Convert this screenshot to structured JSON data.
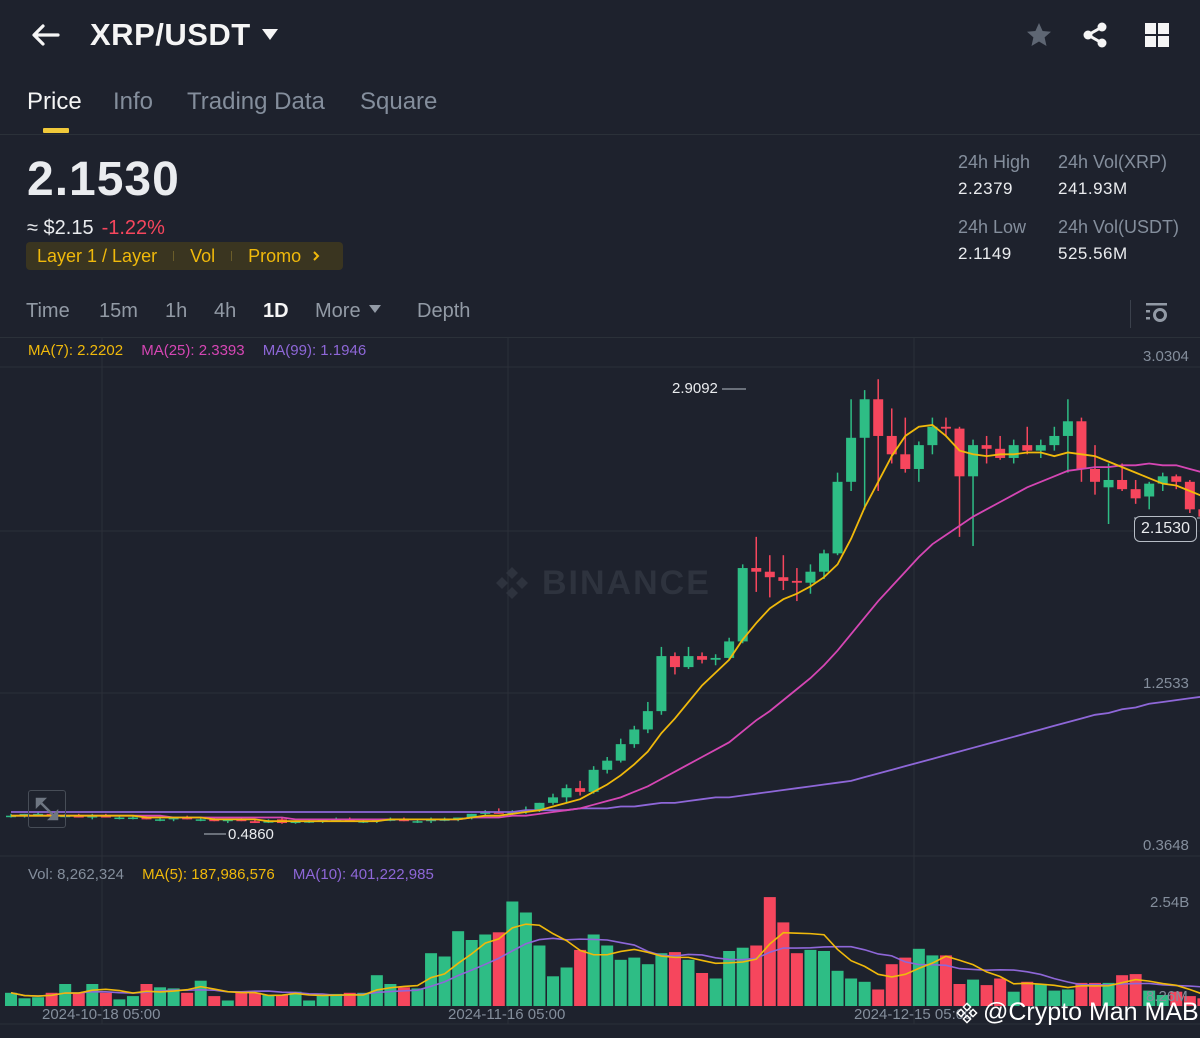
{
  "header": {
    "pair": "XRP/USDT",
    "icons": [
      "back-arrow-icon",
      "star-icon",
      "share-icon",
      "grid-icon"
    ]
  },
  "tabs": [
    {
      "label": "Price",
      "active": true
    },
    {
      "label": "Info",
      "active": false
    },
    {
      "label": "Trading Data",
      "active": false
    },
    {
      "label": "Square",
      "active": false
    }
  ],
  "ticker": {
    "last_price": "2.1530",
    "fiat_price": "≈ $2.15",
    "change_pct": "-1.22%",
    "tags": [
      "Layer 1 / Layer",
      "Vol",
      "Promo"
    ],
    "high_label": "24h High",
    "high_value": "2.2379",
    "low_label": "24h Low",
    "low_value": "2.1149",
    "vol_base_label": "24h Vol(XRP)",
    "vol_base_value": "241.93M",
    "vol_quote_label": "24h Vol(USDT)",
    "vol_quote_value": "525.56M"
  },
  "intervals": {
    "items": [
      "Time",
      "15m",
      "1h",
      "4h",
      "1D",
      "More",
      "Depth"
    ],
    "active": "1D"
  },
  "indicators": {
    "ma7": "MA(7): 2.2202",
    "ma25": "MA(25): 2.3393",
    "ma99": "MA(99): 1.1946",
    "vol": "Vol: 8,262,324",
    "vol_ma5": "MA(5): 187,986,576",
    "vol_ma10": "MA(10): 401,222,985"
  },
  "colors": {
    "up": "#2ebd85",
    "down": "#f6465d",
    "ma7": "#f0b90b",
    "ma25": "#d546b4",
    "ma99": "#8e67d8",
    "accent": "#f0c93a",
    "bg": "#1e222d"
  },
  "chart_data": {
    "type": "candlestick",
    "title": "XRP/USDT 1D",
    "price_axis": [
      "3.0304",
      "2.1530",
      "1.2533",
      "0.3648"
    ],
    "volume_axis": [
      "2.54B",
      "8.26M"
    ],
    "time_axis": [
      "2024-10-18 05:00",
      "2024-11-16 05:00",
      "2024-12-15 05:00"
    ],
    "annotations": {
      "max": "2.9092",
      "min": "0.4860",
      "last": "2.1530"
    },
    "ohlc": [
      [
        0.53,
        0.54,
        0.52,
        0.53
      ],
      [
        0.53,
        0.54,
        0.52,
        0.54
      ],
      [
        0.54,
        0.55,
        0.53,
        0.54
      ],
      [
        0.54,
        0.55,
        0.53,
        0.53
      ],
      [
        0.53,
        0.54,
        0.52,
        0.53
      ],
      [
        0.53,
        0.54,
        0.52,
        0.52
      ],
      [
        0.52,
        0.54,
        0.51,
        0.53
      ],
      [
        0.53,
        0.54,
        0.52,
        0.52
      ],
      [
        0.52,
        0.53,
        0.51,
        0.52
      ],
      [
        0.52,
        0.53,
        0.51,
        0.52
      ],
      [
        0.52,
        0.53,
        0.51,
        0.51
      ],
      [
        0.51,
        0.52,
        0.5,
        0.51
      ],
      [
        0.51,
        0.52,
        0.5,
        0.52
      ],
      [
        0.52,
        0.53,
        0.51,
        0.51
      ],
      [
        0.51,
        0.52,
        0.5,
        0.51
      ],
      [
        0.51,
        0.52,
        0.5,
        0.5
      ],
      [
        0.5,
        0.51,
        0.49,
        0.51
      ],
      [
        0.51,
        0.52,
        0.5,
        0.5
      ],
      [
        0.5,
        0.51,
        0.49,
        0.49
      ],
      [
        0.5,
        0.51,
        0.49,
        0.5
      ],
      [
        0.51,
        0.52,
        0.486,
        0.49
      ],
      [
        0.49,
        0.5,
        0.486,
        0.5
      ],
      [
        0.5,
        0.51,
        0.49,
        0.5
      ],
      [
        0.5,
        0.51,
        0.49,
        0.51
      ],
      [
        0.51,
        0.52,
        0.5,
        0.51
      ],
      [
        0.51,
        0.52,
        0.5,
        0.5
      ],
      [
        0.5,
        0.51,
        0.49,
        0.5
      ],
      [
        0.5,
        0.51,
        0.49,
        0.51
      ],
      [
        0.51,
        0.52,
        0.5,
        0.51
      ],
      [
        0.51,
        0.52,
        0.5,
        0.5
      ],
      [
        0.5,
        0.51,
        0.49,
        0.5
      ],
      [
        0.5,
        0.52,
        0.49,
        0.51
      ],
      [
        0.51,
        0.52,
        0.5,
        0.51
      ],
      [
        0.51,
        0.52,
        0.5,
        0.52
      ],
      [
        0.52,
        0.54,
        0.51,
        0.54
      ],
      [
        0.54,
        0.56,
        0.53,
        0.55
      ],
      [
        0.55,
        0.57,
        0.54,
        0.54
      ],
      [
        0.54,
        0.56,
        0.53,
        0.55
      ],
      [
        0.55,
        0.58,
        0.54,
        0.56
      ],
      [
        0.56,
        0.6,
        0.55,
        0.6
      ],
      [
        0.6,
        0.65,
        0.59,
        0.63
      ],
      [
        0.63,
        0.7,
        0.6,
        0.68
      ],
      [
        0.68,
        0.72,
        0.64,
        0.66
      ],
      [
        0.66,
        0.8,
        0.65,
        0.78
      ],
      [
        0.78,
        0.85,
        0.76,
        0.83
      ],
      [
        0.83,
        0.95,
        0.82,
        0.92
      ],
      [
        0.92,
        1.02,
        0.9,
        1.0
      ],
      [
        1.0,
        1.15,
        0.98,
        1.1
      ],
      [
        1.1,
        1.45,
        1.08,
        1.4
      ],
      [
        1.4,
        1.42,
        1.3,
        1.34
      ],
      [
        1.34,
        1.45,
        1.33,
        1.4
      ],
      [
        1.4,
        1.42,
        1.36,
        1.38
      ],
      [
        1.38,
        1.41,
        1.35,
        1.39
      ],
      [
        1.39,
        1.5,
        1.38,
        1.48
      ],
      [
        1.48,
        1.9,
        1.47,
        1.88
      ],
      [
        1.88,
        2.05,
        1.75,
        1.86
      ],
      [
        1.86,
        1.95,
        1.72,
        1.83
      ],
      [
        1.83,
        1.95,
        1.76,
        1.81
      ],
      [
        1.81,
        1.88,
        1.7,
        1.8
      ],
      [
        1.8,
        1.9,
        1.74,
        1.86
      ],
      [
        1.86,
        1.98,
        1.82,
        1.96
      ],
      [
        1.96,
        2.4,
        1.95,
        2.35
      ],
      [
        2.35,
        2.8,
        2.3,
        2.59
      ],
      [
        2.59,
        2.85,
        2.2,
        2.8
      ],
      [
        2.8,
        2.9092,
        2.3,
        2.6
      ],
      [
        2.6,
        2.75,
        2.45,
        2.5
      ],
      [
        2.5,
        2.7,
        2.4,
        2.42
      ],
      [
        2.42,
        2.57,
        2.35,
        2.55
      ],
      [
        2.55,
        2.7,
        2.5,
        2.65
      ],
      [
        2.65,
        2.7,
        2.6,
        2.64
      ],
      [
        2.64,
        2.65,
        2.05,
        2.38
      ],
      [
        2.38,
        2.58,
        2.0,
        2.55
      ],
      [
        2.55,
        2.6,
        2.45,
        2.53
      ],
      [
        2.53,
        2.6,
        2.47,
        2.48
      ],
      [
        2.48,
        2.58,
        2.45,
        2.55
      ],
      [
        2.55,
        2.65,
        2.5,
        2.52
      ],
      [
        2.52,
        2.58,
        2.48,
        2.55
      ],
      [
        2.55,
        2.65,
        2.52,
        2.6
      ],
      [
        2.6,
        2.8,
        2.4,
        2.68
      ],
      [
        2.68,
        2.7,
        2.35,
        2.42
      ],
      [
        2.42,
        2.55,
        2.28,
        2.35
      ],
      [
        2.32,
        2.45,
        2.12,
        2.36
      ],
      [
        2.36,
        2.45,
        2.3,
        2.31
      ],
      [
        2.31,
        2.36,
        2.23,
        2.26
      ],
      [
        2.27,
        2.35,
        2.2,
        2.34
      ],
      [
        2.34,
        2.4,
        2.3,
        2.38
      ],
      [
        2.38,
        2.39,
        2.31,
        2.35
      ],
      [
        2.35,
        2.36,
        2.18,
        2.2
      ],
      [
        2.2,
        2.24,
        2.16,
        2.16
      ],
      [
        2.15,
        2.16,
        2.14,
        2.153
      ]
    ],
    "ma7": [
      0.53,
      0.53,
      0.53,
      0.53,
      0.53,
      0.53,
      0.53,
      0.53,
      0.53,
      0.53,
      0.52,
      0.52,
      0.52,
      0.52,
      0.52,
      0.51,
      0.51,
      0.51,
      0.51,
      0.5,
      0.5,
      0.5,
      0.5,
      0.5,
      0.5,
      0.5,
      0.5,
      0.5,
      0.51,
      0.51,
      0.51,
      0.51,
      0.51,
      0.51,
      0.52,
      0.53,
      0.53,
      0.54,
      0.55,
      0.56,
      0.58,
      0.6,
      0.62,
      0.66,
      0.7,
      0.75,
      0.81,
      0.88,
      0.98,
      1.06,
      1.15,
      1.24,
      1.31,
      1.38,
      1.49,
      1.58,
      1.66,
      1.71,
      1.74,
      1.78,
      1.83,
      1.9,
      2.04,
      2.21,
      2.35,
      2.49,
      2.6,
      2.65,
      2.66,
      2.6,
      2.52,
      2.5,
      2.49,
      2.5,
      2.5,
      2.51,
      2.51,
      2.49,
      2.51,
      2.5,
      2.49,
      2.46,
      2.43,
      2.4,
      2.37,
      2.34,
      2.33,
      2.3,
      2.27,
      2.22
    ],
    "ma25": [
      0.53,
      0.53,
      0.53,
      0.53,
      0.53,
      0.53,
      0.53,
      0.53,
      0.53,
      0.53,
      0.53,
      0.53,
      0.52,
      0.52,
      0.52,
      0.52,
      0.52,
      0.52,
      0.52,
      0.52,
      0.52,
      0.51,
      0.51,
      0.51,
      0.51,
      0.51,
      0.51,
      0.51,
      0.51,
      0.51,
      0.51,
      0.51,
      0.51,
      0.51,
      0.52,
      0.52,
      0.52,
      0.53,
      0.53,
      0.54,
      0.55,
      0.56,
      0.57,
      0.59,
      0.61,
      0.63,
      0.66,
      0.69,
      0.73,
      0.77,
      0.81,
      0.85,
      0.89,
      0.93,
      0.99,
      1.05,
      1.1,
      1.16,
      1.22,
      1.28,
      1.35,
      1.43,
      1.52,
      1.61,
      1.7,
      1.78,
      1.86,
      1.94,
      2.01,
      2.06,
      2.11,
      2.16,
      2.2,
      2.24,
      2.28,
      2.32,
      2.35,
      2.38,
      2.41,
      2.42,
      2.43,
      2.43,
      2.44,
      2.44,
      2.45,
      2.44,
      2.44,
      2.42,
      2.4,
      2.34
    ],
    "ma99": [
      0.55,
      0.55,
      0.55,
      0.55,
      0.55,
      0.55,
      0.55,
      0.55,
      0.55,
      0.55,
      0.55,
      0.55,
      0.55,
      0.55,
      0.55,
      0.55,
      0.55,
      0.55,
      0.55,
      0.55,
      0.55,
      0.55,
      0.55,
      0.55,
      0.55,
      0.55,
      0.55,
      0.55,
      0.55,
      0.55,
      0.55,
      0.55,
      0.55,
      0.55,
      0.55,
      0.55,
      0.55,
      0.55,
      0.56,
      0.56,
      0.56,
      0.56,
      0.57,
      0.57,
      0.57,
      0.58,
      0.58,
      0.59,
      0.6,
      0.6,
      0.61,
      0.62,
      0.63,
      0.63,
      0.64,
      0.65,
      0.66,
      0.67,
      0.68,
      0.69,
      0.7,
      0.71,
      0.72,
      0.74,
      0.76,
      0.78,
      0.8,
      0.82,
      0.84,
      0.86,
      0.88,
      0.9,
      0.92,
      0.94,
      0.96,
      0.98,
      1.0,
      1.02,
      1.04,
      1.06,
      1.08,
      1.09,
      1.11,
      1.12,
      1.14,
      1.15,
      1.16,
      1.17,
      1.18,
      1.19
    ],
    "volume": [
      0.12,
      0.07,
      0.08,
      0.12,
      0.2,
      0.12,
      0.2,
      0.12,
      0.06,
      0.09,
      0.2,
      0.17,
      0.16,
      0.12,
      0.23,
      0.09,
      0.05,
      0.12,
      0.12,
      0.1,
      0.1,
      0.13,
      0.05,
      0.1,
      0.11,
      0.12,
      0.12,
      0.28,
      0.2,
      0.17,
      0.16,
      0.48,
      0.45,
      0.68,
      0.6,
      0.65,
      0.67,
      0.95,
      0.85,
      0.55,
      0.27,
      0.35,
      0.51,
      0.65,
      0.55,
      0.42,
      0.44,
      0.38,
      0.48,
      0.49,
      0.42,
      0.3,
      0.25,
      0.5,
      0.53,
      0.55,
      0.99,
      0.76,
      0.48,
      0.51,
      0.5,
      0.32,
      0.25,
      0.22,
      0.15,
      0.38,
      0.44,
      0.52,
      0.46,
      0.46,
      0.2,
      0.24,
      0.19,
      0.25,
      0.13,
      0.22,
      0.2,
      0.14,
      0.15,
      0.21,
      0.21,
      0.21,
      0.28,
      0.29,
      0.14,
      0.1,
      0.13,
      0.09,
      0.07,
      0.05
    ],
    "ylim": [
      0.3648,
      3.0304
    ]
  },
  "watermark": "@Crypto Man MAB",
  "chart_watermark": "BINANCE"
}
